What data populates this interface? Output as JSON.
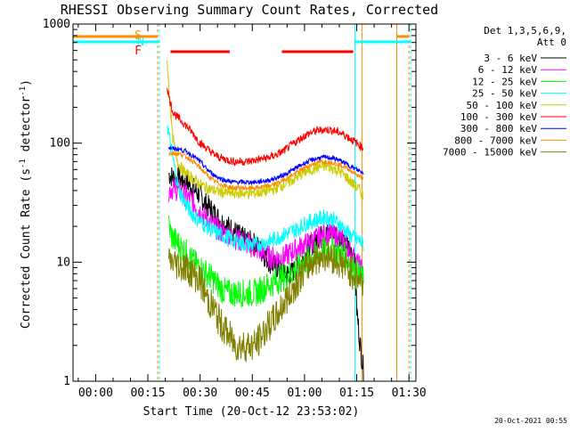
{
  "chart_data": {
    "type": "line",
    "title": "RHESSI Observing Summary Count Rates, Corrected",
    "ylabel": "Corrected Count Rate (s",
    "ylabel_sup1": "-1",
    "ylabel_mid": " detector",
    "ylabel_sup2": "-1",
    "ylabel_end": ")",
    "xlabel": "Start Time (20-Oct-12 23:53:02)",
    "x_ticks": [
      "00:00",
      "00:15",
      "00:30",
      "00:45",
      "01:00",
      "01:15",
      "01:30"
    ],
    "y_ticks": [
      "1",
      "10",
      "100",
      "1000"
    ],
    "y_scale": "log",
    "ylim": [
      1,
      1000
    ],
    "xlim_minutes": [
      -6.5,
      92
    ],
    "timestamp": "20-Oct-2021 00:55",
    "legend_header_1": "Det 1,3,5,6,9,",
    "legend_header_2": "Att 0",
    "flag_labels": {
      "s": "S",
      "n": "N",
      "f": "F"
    },
    "series": [
      {
        "name": "3 - 6 keV",
        "color": "#000000",
        "points": [
          [
            21,
            55
          ],
          [
            22,
            52
          ],
          [
            24,
            50
          ],
          [
            26,
            47
          ],
          [
            28,
            42
          ],
          [
            30,
            36
          ],
          [
            32,
            30
          ],
          [
            34,
            26
          ],
          [
            36,
            22
          ],
          [
            38,
            20
          ],
          [
            40,
            18
          ],
          [
            42,
            16
          ],
          [
            44,
            15
          ],
          [
            46,
            14
          ],
          [
            48,
            12
          ],
          [
            50,
            10
          ],
          [
            52,
            9
          ],
          [
            54,
            8
          ],
          [
            56,
            8
          ],
          [
            58,
            9
          ],
          [
            60,
            11
          ],
          [
            62,
            14
          ],
          [
            64,
            16
          ],
          [
            66,
            17
          ],
          [
            68,
            18
          ],
          [
            70,
            17
          ],
          [
            72,
            14
          ],
          [
            74,
            12
          ],
          [
            74.5,
            9
          ],
          [
            75,
            4
          ],
          [
            76,
            2
          ],
          [
            77,
            1.2
          ]
        ]
      },
      {
        "name": "6 - 12 keV",
        "color": "#ff00ff",
        "points": [
          [
            21,
            40
          ],
          [
            22,
            42
          ],
          [
            24,
            40
          ],
          [
            26,
            36
          ],
          [
            28,
            32
          ],
          [
            30,
            27
          ],
          [
            32,
            23
          ],
          [
            34,
            20
          ],
          [
            36,
            18
          ],
          [
            38,
            17
          ],
          [
            40,
            16
          ],
          [
            42,
            15
          ],
          [
            44,
            14
          ],
          [
            46,
            13
          ],
          [
            48,
            12
          ],
          [
            50,
            11
          ],
          [
            52,
            11
          ],
          [
            54,
            11
          ],
          [
            56,
            12
          ],
          [
            58,
            13
          ],
          [
            60,
            14
          ],
          [
            62,
            15
          ],
          [
            64,
            16
          ],
          [
            66,
            17
          ],
          [
            68,
            17
          ],
          [
            70,
            16
          ],
          [
            72,
            14
          ],
          [
            74,
            11
          ],
          [
            76,
            9
          ],
          [
            77,
            8
          ]
        ]
      },
      {
        "name": "12 - 25 keV",
        "color": "#00ff00",
        "points": [
          [
            21,
            20
          ],
          [
            22,
            16
          ],
          [
            24,
            14
          ],
          [
            26,
            12
          ],
          [
            28,
            10
          ],
          [
            30,
            9
          ],
          [
            32,
            8
          ],
          [
            34,
            7
          ],
          [
            36,
            6
          ],
          [
            38,
            5.5
          ],
          [
            40,
            5.5
          ],
          [
            42,
            5.5
          ],
          [
            44,
            5.5
          ],
          [
            46,
            5.5
          ],
          [
            48,
            6
          ],
          [
            50,
            6.5
          ],
          [
            52,
            7
          ],
          [
            54,
            7.5
          ],
          [
            56,
            8
          ],
          [
            58,
            9
          ],
          [
            60,
            10
          ],
          [
            62,
            11
          ],
          [
            64,
            12
          ],
          [
            66,
            12.5
          ],
          [
            68,
            12.5
          ],
          [
            70,
            12
          ],
          [
            72,
            11
          ],
          [
            74,
            9
          ],
          [
            76,
            7.5
          ],
          [
            77,
            7
          ]
        ]
      },
      {
        "name": "25 - 50 keV",
        "color": "#00ffff",
        "points": [
          [
            20.5,
            150
          ],
          [
            21,
            120
          ],
          [
            22,
            80
          ],
          [
            23,
            55
          ],
          [
            24,
            40
          ],
          [
            26,
            30
          ],
          [
            28,
            25
          ],
          [
            30,
            22
          ],
          [
            32,
            20
          ],
          [
            34,
            18
          ],
          [
            36,
            17
          ],
          [
            38,
            16
          ],
          [
            40,
            15
          ],
          [
            42,
            14.5
          ],
          [
            44,
            14
          ],
          [
            46,
            14
          ],
          [
            48,
            14.5
          ],
          [
            50,
            15
          ],
          [
            52,
            16
          ],
          [
            54,
            17
          ],
          [
            56,
            18
          ],
          [
            58,
            19
          ],
          [
            60,
            21
          ],
          [
            62,
            22
          ],
          [
            64,
            23
          ],
          [
            66,
            24
          ],
          [
            68,
            23
          ],
          [
            70,
            21
          ],
          [
            72,
            18
          ],
          [
            74,
            16
          ],
          [
            76,
            15
          ],
          [
            77,
            14
          ]
        ]
      },
      {
        "name": "50 - 100 keV",
        "color": "#cccc00",
        "points": [
          [
            20.5,
            500
          ],
          [
            21,
            300
          ],
          [
            22,
            120
          ],
          [
            23,
            80
          ],
          [
            24,
            65
          ],
          [
            26,
            55
          ],
          [
            28,
            50
          ],
          [
            30,
            45
          ],
          [
            32,
            42
          ],
          [
            34,
            40
          ],
          [
            36,
            39
          ],
          [
            38,
            38
          ],
          [
            40,
            38
          ],
          [
            42,
            38
          ],
          [
            44,
            38
          ],
          [
            46,
            38
          ],
          [
            48,
            39
          ],
          [
            50,
            40
          ],
          [
            52,
            42
          ],
          [
            54,
            45
          ],
          [
            56,
            48
          ],
          [
            58,
            52
          ],
          [
            60,
            57
          ],
          [
            62,
            60
          ],
          [
            64,
            63
          ],
          [
            66,
            64
          ],
          [
            68,
            62
          ],
          [
            70,
            58
          ],
          [
            72,
            52
          ],
          [
            74,
            45
          ],
          [
            76,
            40
          ],
          [
            77,
            35
          ]
        ]
      },
      {
        "name": "100 - 300 keV",
        "color": "#ff0000",
        "points": [
          [
            20.5,
            300
          ],
          [
            21,
            250
          ],
          [
            22,
            190
          ],
          [
            23,
            170
          ],
          [
            24,
            160
          ],
          [
            26,
            140
          ],
          [
            28,
            120
          ],
          [
            30,
            100
          ],
          [
            32,
            90
          ],
          [
            34,
            80
          ],
          [
            36,
            75
          ],
          [
            38,
            72
          ],
          [
            40,
            70
          ],
          [
            42,
            70
          ],
          [
            44,
            70
          ],
          [
            46,
            72
          ],
          [
            48,
            74
          ],
          [
            50,
            76
          ],
          [
            52,
            80
          ],
          [
            54,
            86
          ],
          [
            56,
            95
          ],
          [
            58,
            105
          ],
          [
            60,
            115
          ],
          [
            62,
            123
          ],
          [
            64,
            128
          ],
          [
            66,
            130
          ],
          [
            68,
            128
          ],
          [
            70,
            123
          ],
          [
            72,
            115
          ],
          [
            74,
            105
          ],
          [
            76,
            95
          ],
          [
            77,
            90
          ]
        ]
      },
      {
        "name": "300 - 800 keV",
        "color": "#0000ff",
        "points": [
          [
            21,
            92
          ],
          [
            22,
            90
          ],
          [
            24,
            89
          ],
          [
            26,
            85
          ],
          [
            28,
            78
          ],
          [
            30,
            70
          ],
          [
            32,
            60
          ],
          [
            34,
            54
          ],
          [
            36,
            50
          ],
          [
            38,
            48
          ],
          [
            40,
            47
          ],
          [
            42,
            47
          ],
          [
            44,
            47
          ],
          [
            46,
            47
          ],
          [
            48,
            48
          ],
          [
            50,
            49
          ],
          [
            52,
            51
          ],
          [
            54,
            54
          ],
          [
            56,
            58
          ],
          [
            58,
            63
          ],
          [
            60,
            68
          ],
          [
            62,
            72
          ],
          [
            64,
            75
          ],
          [
            66,
            76
          ],
          [
            68,
            75
          ],
          [
            70,
            72
          ],
          [
            72,
            67
          ],
          [
            74,
            62
          ],
          [
            76,
            58
          ],
          [
            77,
            56
          ]
        ]
      },
      {
        "name": "800 - 7000 keV",
        "color": "#ff8c00",
        "points": [
          [
            21,
            82
          ],
          [
            22,
            82
          ],
          [
            24,
            81
          ],
          [
            26,
            77
          ],
          [
            28,
            70
          ],
          [
            30,
            62
          ],
          [
            32,
            54
          ],
          [
            34,
            48
          ],
          [
            36,
            45
          ],
          [
            38,
            43
          ],
          [
            40,
            42
          ],
          [
            42,
            42
          ],
          [
            44,
            42
          ],
          [
            46,
            42
          ],
          [
            48,
            43
          ],
          [
            50,
            44
          ],
          [
            52,
            46
          ],
          [
            54,
            49
          ],
          [
            56,
            53
          ],
          [
            58,
            57
          ],
          [
            60,
            62
          ],
          [
            62,
            66
          ],
          [
            64,
            69
          ],
          [
            66,
            70
          ],
          [
            68,
            69
          ],
          [
            70,
            66
          ],
          [
            72,
            62
          ],
          [
            74,
            57
          ],
          [
            76,
            52
          ],
          [
            77,
            50
          ]
        ]
      },
      {
        "name": "7000 - 15000 keV",
        "color": "#808000",
        "points": [
          [
            21,
            10
          ],
          [
            22,
            10
          ],
          [
            24,
            9.5
          ],
          [
            26,
            9
          ],
          [
            28,
            8
          ],
          [
            30,
            7
          ],
          [
            32,
            5
          ],
          [
            34,
            4
          ],
          [
            36,
            3
          ],
          [
            38,
            2.5
          ],
          [
            40,
            2
          ],
          [
            42,
            2
          ],
          [
            44,
            2
          ],
          [
            46,
            2
          ],
          [
            48,
            2.5
          ],
          [
            50,
            3
          ],
          [
            52,
            3.5
          ],
          [
            54,
            4.5
          ],
          [
            56,
            5.5
          ],
          [
            58,
            7
          ],
          [
            60,
            8.5
          ],
          [
            62,
            10
          ],
          [
            64,
            11
          ],
          [
            66,
            11.5
          ],
          [
            68,
            11
          ],
          [
            70,
            10
          ],
          [
            72,
            9
          ],
          [
            74,
            8
          ],
          [
            76,
            7
          ],
          [
            77,
            6.5
          ]
        ]
      }
    ],
    "vlines": [
      {
        "t": -6.5,
        "color": "#00ffff"
      },
      {
        "t": 17.8,
        "color": "#ff8c00",
        "dashed": true
      },
      {
        "t": 18.3,
        "color": "#00ffff",
        "dashed": true
      },
      {
        "t": 74.5,
        "color": "#00ffff"
      },
      {
        "t": 76.5,
        "color": "#ff8c00"
      },
      {
        "t": 86.5,
        "color": "#ff8c00"
      },
      {
        "t": 90,
        "color": "#ff8c00",
        "dashed": true
      },
      {
        "t": 90.5,
        "color": "#00ffff",
        "dashed": true
      }
    ],
    "flags": [
      {
        "row": "s",
        "color": "#ff8c00",
        "segments": [
          [
            -6.5,
            17.8
          ],
          [
            86.5,
            90
          ]
        ]
      },
      {
        "row": "n",
        "color": "#00ffff",
        "segments": [
          [
            -6.5,
            18.3
          ],
          [
            74.5,
            90.5
          ]
        ]
      },
      {
        "row": "f",
        "color": "#ff0000",
        "segments": [
          [
            21.5,
            38.5
          ],
          [
            53.5,
            74
          ]
        ]
      }
    ]
  }
}
